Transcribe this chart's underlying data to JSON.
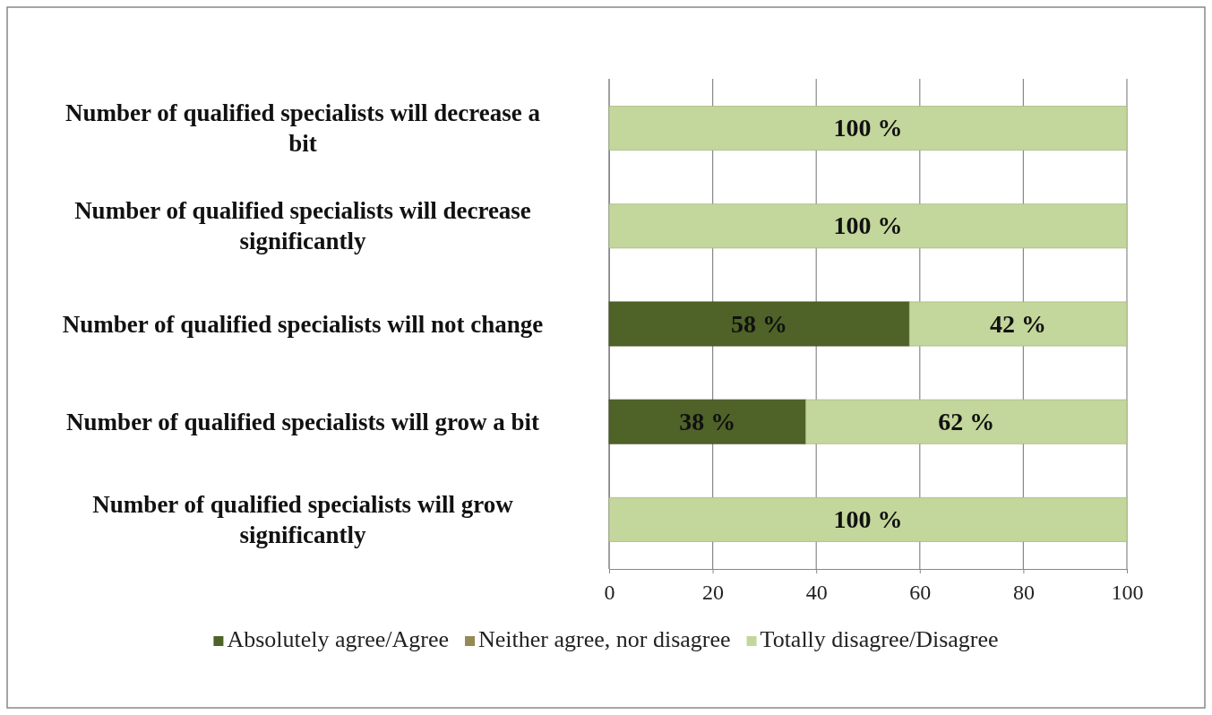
{
  "chart_data": {
    "type": "bar",
    "orientation": "horizontal",
    "stacked": true,
    "categories": [
      "Number of qualified specialists will decrease a bit",
      "Number of qualified specialists will decrease significantly",
      "Number of qualified specialists will not change",
      "Number of qualified specialists will grow a bit",
      "Number of qualified specialists will grow significantly"
    ],
    "series": [
      {
        "name": "Absolutely agree/Agree",
        "color": "#4f6228",
        "values": [
          0,
          0,
          58,
          38,
          0
        ],
        "value_labels": [
          null,
          null,
          "58 %",
          "38 %",
          null
        ]
      },
      {
        "name": "Neither agree, nor disagree",
        "color": "#948a54",
        "values": [
          0,
          0,
          0,
          0,
          0
        ],
        "value_labels": [
          null,
          null,
          null,
          null,
          null
        ]
      },
      {
        "name": "Totally disagree/Disagree",
        "color": "#c3d69b",
        "values": [
          100,
          100,
          42,
          62,
          100
        ],
        "value_labels": [
          "100 %",
          "100 %",
          "42 %",
          "62 %",
          "100 %"
        ]
      }
    ],
    "xlim": [
      0,
      100
    ],
    "xticks": [
      0,
      20,
      40,
      60,
      80,
      100
    ],
    "grid": "x",
    "legend": "bottom"
  }
}
